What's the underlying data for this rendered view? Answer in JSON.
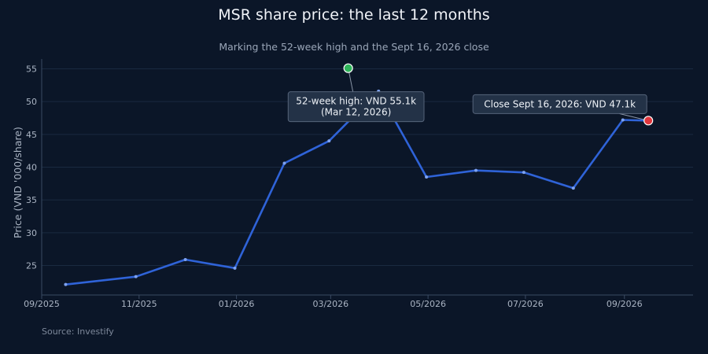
{
  "title": "MSR share price: the last 12 months",
  "subtitle": "Marking the 52-week high and the Sept 16, 2026 close",
  "source": "Source: Investify",
  "colors": {
    "background": "#0b1628",
    "line": "#2f63d8",
    "grid": "#1a2a40",
    "high_marker": "#2fb55a",
    "close_marker": "#e0353c",
    "annotation_bg": "#233247",
    "annotation_border": "#56647a"
  },
  "chart_data": {
    "type": "line",
    "xlabel": "",
    "ylabel": "Price (VND '000/share)",
    "xlim": [
      "2025-09-01",
      "2026-10-14"
    ],
    "ylim": [
      20.5,
      56.5
    ],
    "x_ticks": [
      {
        "date": "2025-09-01",
        "label": "09/2025"
      },
      {
        "date": "2025-11-01",
        "label": "11/2025"
      },
      {
        "date": "2026-01-01",
        "label": "01/2026"
      },
      {
        "date": "2026-03-01",
        "label": "03/2026"
      },
      {
        "date": "2026-05-01",
        "label": "05/2026"
      },
      {
        "date": "2026-07-01",
        "label": "07/2026"
      },
      {
        "date": "2026-09-01",
        "label": "09/2026"
      }
    ],
    "y_ticks": [
      25,
      30,
      35,
      40,
      45,
      50,
      55
    ],
    "grid": true,
    "series": [
      {
        "x": [
          "2025-09-16",
          "2025-10-30",
          "2025-11-30",
          "2025-12-31",
          "2026-01-31",
          "2026-02-28",
          "2026-03-31",
          "2026-04-30",
          "2026-05-31",
          "2026-06-30",
          "2026-07-31",
          "2026-08-31",
          "2026-09-16"
        ],
        "values": [
          22.1,
          23.3,
          25.9,
          24.6,
          40.6,
          44.0,
          51.6,
          38.5,
          39.5,
          39.2,
          36.8,
          47.2,
          47.1
        ]
      }
    ],
    "annotations": [
      {
        "kind": "high",
        "date": "2026-03-12",
        "value": 55.1,
        "label_lines": [
          "52-week high: VND 55.1k",
          "(Mar 12, 2026)"
        ]
      },
      {
        "kind": "close",
        "date": "2026-09-16",
        "value": 47.1,
        "label_lines": [
          "Close Sept 16, 2026: VND 47.1k"
        ]
      }
    ]
  }
}
